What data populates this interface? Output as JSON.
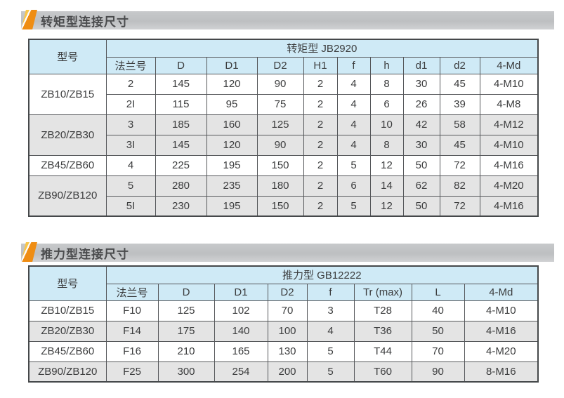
{
  "colors": {
    "header_blue": "#cfeaf6",
    "shaded_row_gray": "#e4e4e4",
    "plain_row_white": "#ffffff",
    "border_dark": "#55575a",
    "title_bar_gray": "#c0c2c4",
    "title_text_gray": "#4a4b4d",
    "marker_orange_light": "#f8c64b",
    "marker_orange_dark": "#ef8d13",
    "cell_text": "#3b3c3d"
  },
  "sections": [
    {
      "title": "转矩型连接尺寸",
      "marker_icon": "orange-flag-icon",
      "table": {
        "model_header": "型号",
        "group_header": "转矩型 JB2920",
        "columns": [
          "法兰号",
          "D",
          "D1",
          "D2",
          "H1",
          "f",
          "h",
          "d1",
          "d2",
          "4-Md"
        ],
        "groups": [
          {
            "model": "ZB10/ZB15",
            "rows": [
              [
                "2",
                "145",
                "120",
                "90",
                "2",
                "4",
                "8",
                "30",
                "45",
                "4-M10"
              ],
              [
                "2I",
                "115",
                "95",
                "75",
                "2",
                "4",
                "6",
                "26",
                "39",
                "4-M8"
              ]
            ]
          },
          {
            "model": "ZB20/ZB30",
            "rows": [
              [
                "3",
                "185",
                "160",
                "125",
                "2",
                "4",
                "10",
                "42",
                "58",
                "4-M12"
              ],
              [
                "3I",
                "145",
                "120",
                "90",
                "2",
                "4",
                "8",
                "30",
                "45",
                "4-M10"
              ]
            ]
          },
          {
            "model": "ZB45/ZB60",
            "rows": [
              [
                "4",
                "225",
                "195",
                "150",
                "2",
                "5",
                "12",
                "50",
                "72",
                "4-M16"
              ]
            ]
          },
          {
            "model": "ZB90/ZB120",
            "rows": [
              [
                "5",
                "280",
                "235",
                "180",
                "2",
                "6",
                "14",
                "62",
                "82",
                "4-M20"
              ],
              [
                "5I",
                "230",
                "195",
                "150",
                "2",
                "5",
                "12",
                "50",
                "72",
                "4-M16"
              ]
            ]
          }
        ]
      }
    },
    {
      "title": "推力型连接尺寸",
      "marker_icon": "orange-flag-icon",
      "table": {
        "model_header": "型号",
        "group_header": "推力型 GB12222",
        "columns": [
          "法兰号",
          "D",
          "D1",
          "D2",
          "f",
          "Tr (max)",
          "L",
          "4-Md"
        ],
        "groups": [
          {
            "model": "ZB10/ZB15",
            "rows": [
              [
                "F10",
                "125",
                "102",
                "70",
                "3",
                "T28",
                "40",
                "4-M10"
              ]
            ]
          },
          {
            "model": "ZB20/ZB30",
            "rows": [
              [
                "F14",
                "175",
                "140",
                "100",
                "4",
                "T36",
                "50",
                "4-M16"
              ]
            ]
          },
          {
            "model": "ZB45/ZB60",
            "rows": [
              [
                "F16",
                "210",
                "165",
                "130",
                "5",
                "T44",
                "70",
                "4-M20"
              ]
            ]
          },
          {
            "model": "ZB90/ZB120",
            "rows": [
              [
                "F25",
                "300",
                "254",
                "200",
                "5",
                "T60",
                "90",
                "8-M16"
              ]
            ]
          }
        ]
      }
    }
  ]
}
